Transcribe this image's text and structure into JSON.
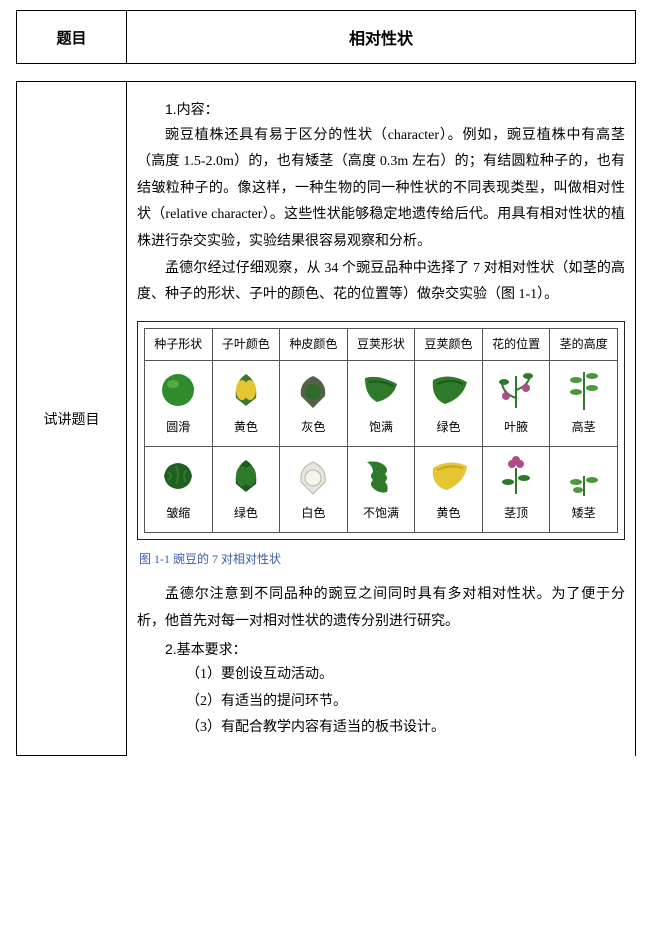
{
  "header": {
    "left": "题目",
    "right": "相对性状"
  },
  "section": {
    "left_label": "试讲题目",
    "content_heading": "1.内容：",
    "para1": "豌豆植株还具有易于区分的性状（character）。例如，豌豆植株中有高茎（高度 1.5-2.0m）的，也有矮茎（高度 0.3m 左右）的；有结圆粒种子的，也有结皱粒种子的。像这样，一种生物的同一种性状的不同表现类型，叫做相对性状（relative character）。这些性状能够稳定地遗传给后代。用具有相对性状的植株进行杂交实验，实验结果很容易观察和分析。",
    "para2": "孟德尔经过仔细观察，从 34 个豌豆品种中选择了 7 对相对性状（如茎的高度、种子的形状、子叶的颜色、花的位置等）做杂交实验（图 1-1）。",
    "figure_caption": "图 1-1  豌豆的 7 对相对性状",
    "para3": "孟德尔注意到不同品种的豌豆之间同时具有多对相对性状。为了便于分析，他首先对每一对相对性状的遗传分别进行研究。",
    "req_heading": "2.基本要求：",
    "req1": "（1）要创设互动活动。",
    "req2": "（2）有适当的提问环节。",
    "req3": "（3）有配合教学内容有适当的板书设计。"
  },
  "trait_table": {
    "columns": [
      "种子形状",
      "子叶颜色",
      "种皮颜色",
      "豆荚形状",
      "豆荚颜色",
      "花的位置",
      "茎的高度"
    ],
    "rows": [
      [
        {
          "label": "圆滑",
          "icon": "round-seed",
          "color1": "#2e8b2e",
          "color2": "#6fc24a"
        },
        {
          "label": "黄色",
          "icon": "cotyledon-yellow",
          "color1": "#e7c433",
          "color2": "#3a7a2a"
        },
        {
          "label": "灰色",
          "icon": "seedcoat-grey",
          "color1": "#556048",
          "color2": "#2e6a2a"
        },
        {
          "label": "饱满",
          "icon": "pod-full",
          "color1": "#2f7a2a",
          "color2": "#1d5a1d"
        },
        {
          "label": "绿色",
          "icon": "pod-green",
          "color1": "#2f7a2a",
          "color2": "#1d5a1d"
        },
        {
          "label": "叶腋",
          "icon": "flower-axil",
          "color1": "#b04a8a",
          "color2": "#2f7a2a"
        },
        {
          "label": "高茎",
          "icon": "stem-tall",
          "color1": "#2f7a2a",
          "color2": "#4a9a3a"
        }
      ],
      [
        {
          "label": "皱缩",
          "icon": "wrinkled-seed",
          "color1": "#1f5f1f",
          "color2": "#2e7a2e"
        },
        {
          "label": "绿色",
          "icon": "cotyledon-green",
          "color1": "#2f7a2a",
          "color2": "#1d5a1d"
        },
        {
          "label": "白色",
          "icon": "seedcoat-white",
          "color1": "#e6e6da",
          "color2": "#b8b8a8"
        },
        {
          "label": "不饱满",
          "icon": "pod-constricted",
          "color1": "#2f7a2a",
          "color2": "#1d5a1d"
        },
        {
          "label": "黄色",
          "icon": "pod-yellow",
          "color1": "#e7c433",
          "color2": "#c9a41a"
        },
        {
          "label": "茎顶",
          "icon": "flower-terminal",
          "color1": "#b04a8a",
          "color2": "#2f7a2a"
        },
        {
          "label": "矮茎",
          "icon": "stem-short",
          "color1": "#2f7a2a",
          "color2": "#4a9a3a"
        }
      ]
    ]
  },
  "style": {
    "text_color": "#000000",
    "border_color": "#000000",
    "caption_color": "#3a5fa4",
    "body_font_size": 14,
    "header_font_size": 16,
    "trait_font_size": 12
  }
}
